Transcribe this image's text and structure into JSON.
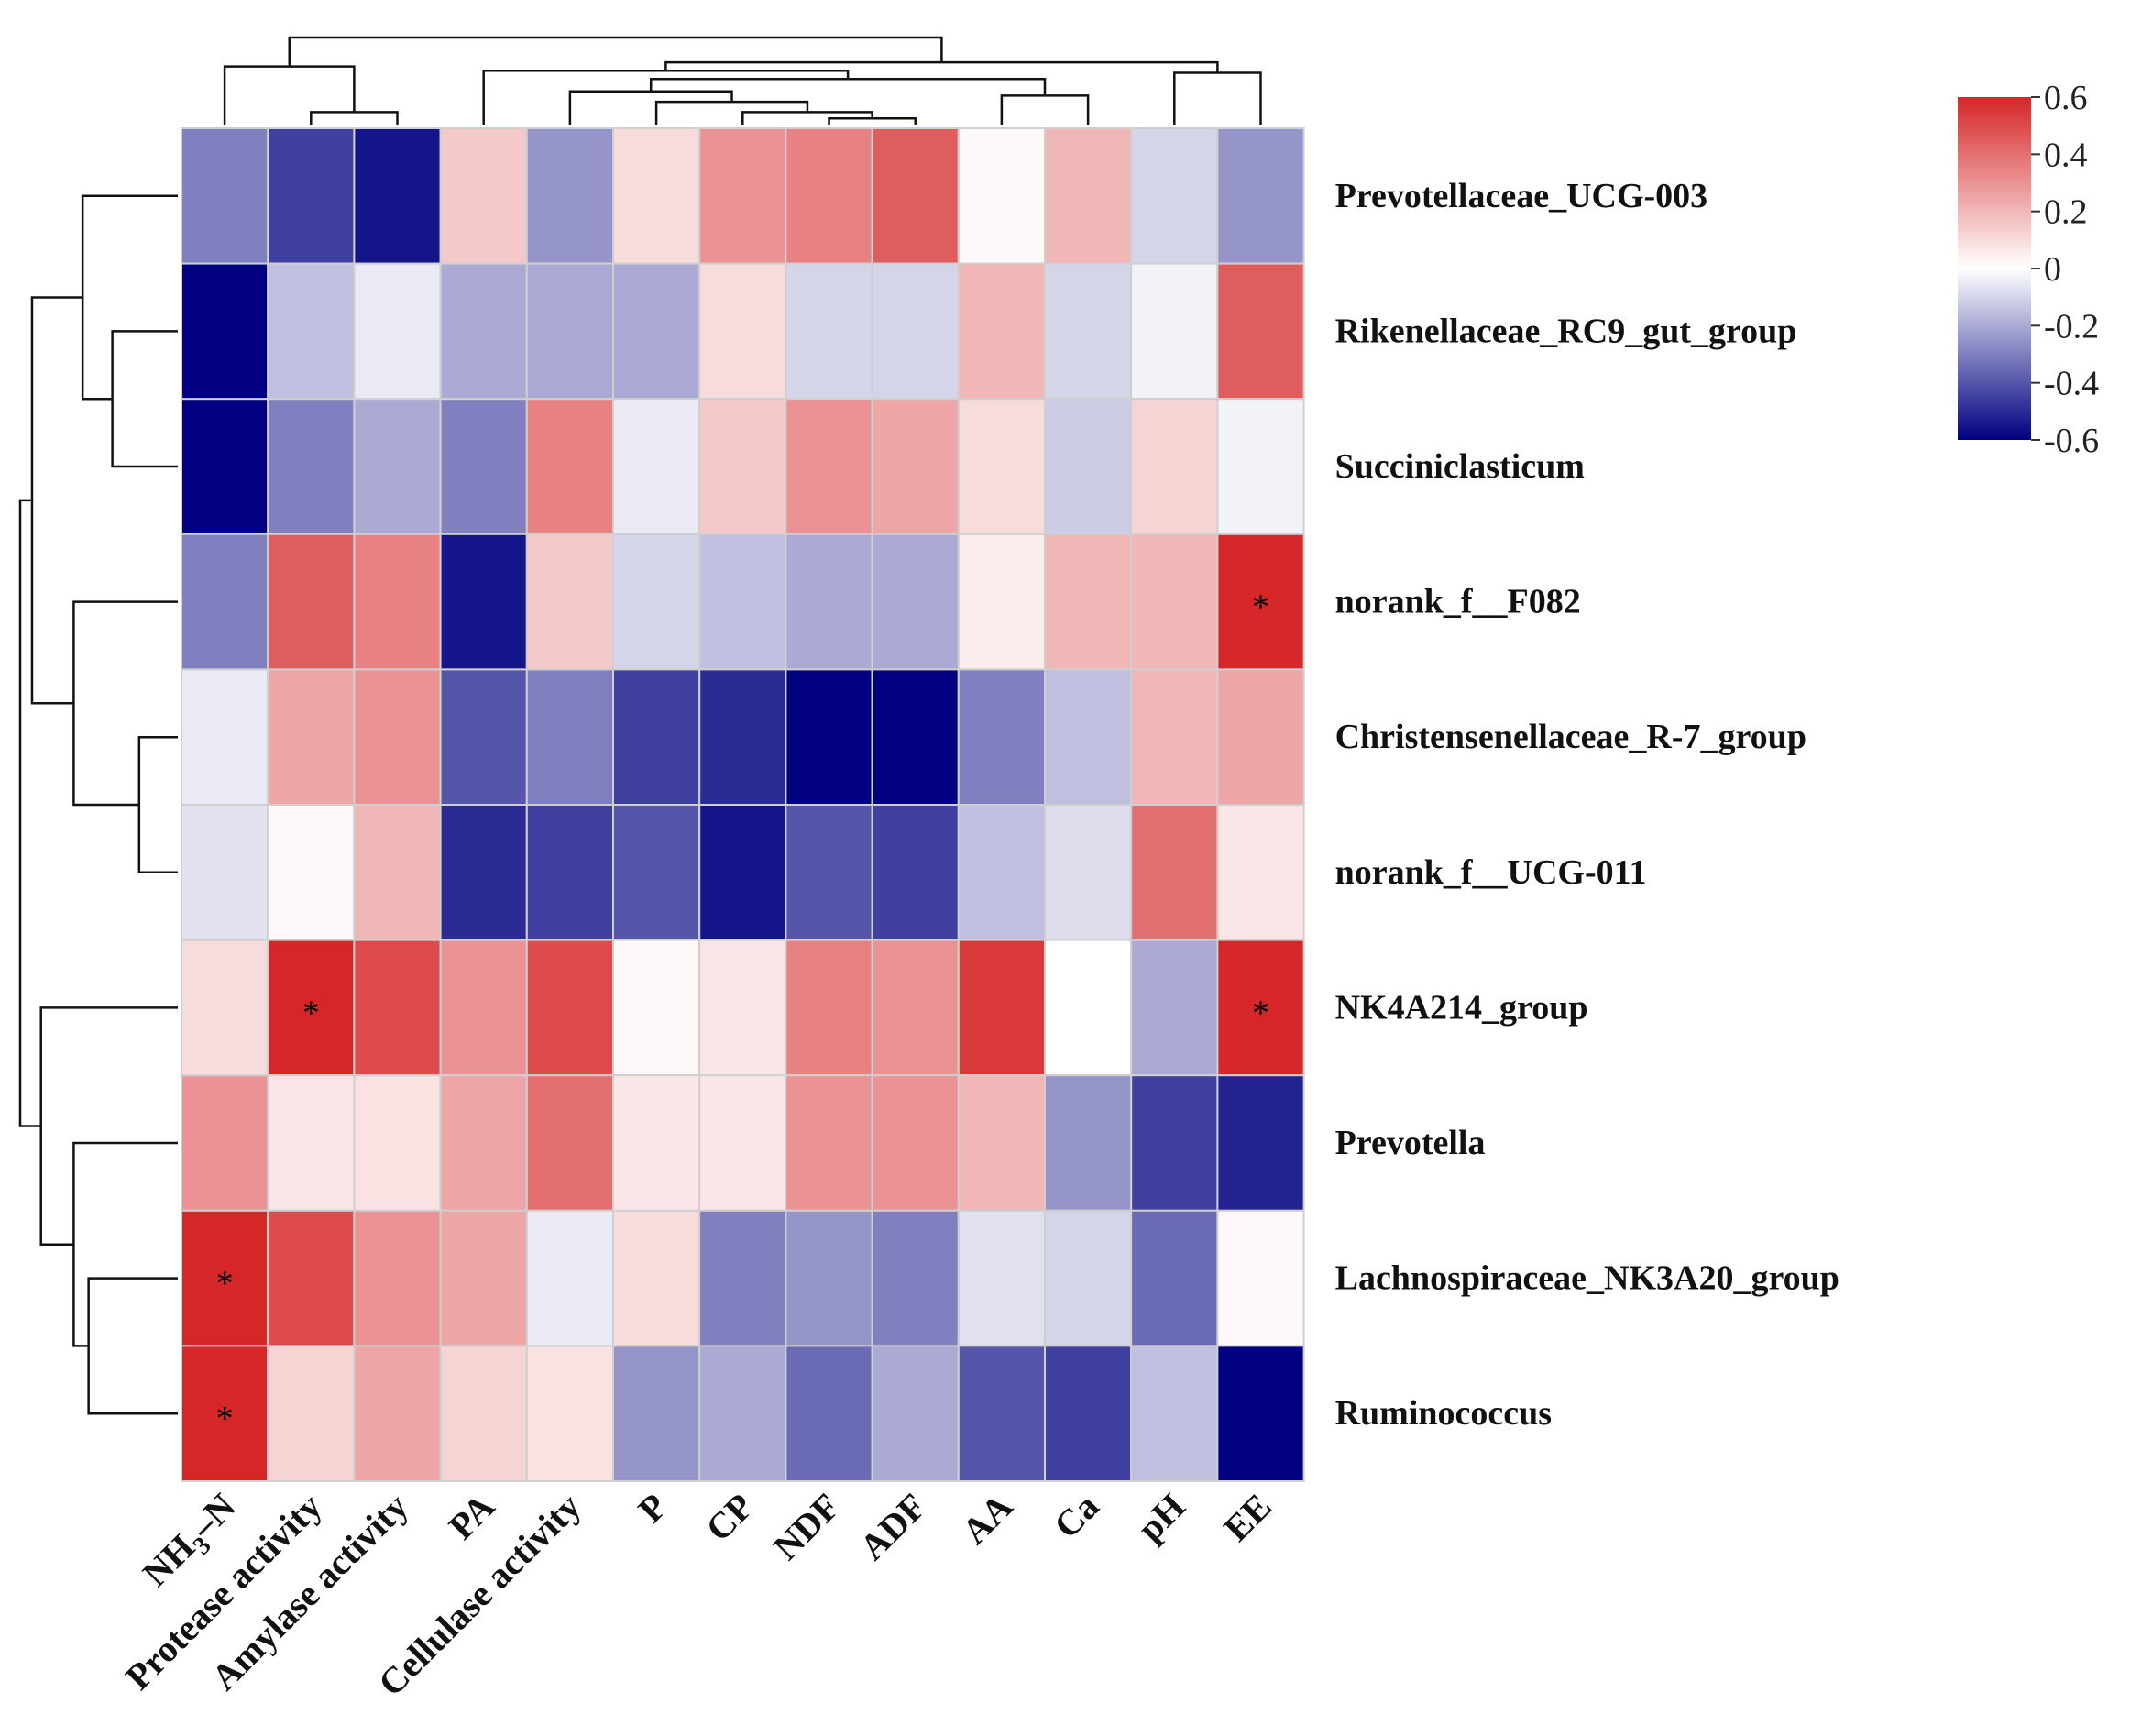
{
  "chart_data": {
    "type": "heatmap",
    "title": "",
    "columns": [
      "NH3–N",
      "Protease activity",
      "Amylase activity",
      "PA",
      "Cellulase activity",
      "P",
      "CP",
      "NDF",
      "ADF",
      "AA",
      "Ca",
      "pH",
      "EE"
    ],
    "column_labels": [
      {
        "main": "NH",
        "sub": "3",
        "rest": "–N"
      },
      {
        "main": "Protease activity"
      },
      {
        "main": "Amylase activity"
      },
      {
        "main": "PA"
      },
      {
        "main": "Cellulase activity"
      },
      {
        "main": "P"
      },
      {
        "main": "CP"
      },
      {
        "main": "NDF"
      },
      {
        "main": "ADF"
      },
      {
        "main": "AA"
      },
      {
        "main": "Ca"
      },
      {
        "main": "pH"
      },
      {
        "main": "EE"
      }
    ],
    "rows": [
      "Prevotellaceae_UCG-003",
      "Rikenellaceae_RC9_gut_group",
      "Succiniclasticum",
      "norank_f__F082",
      "Christensenellaceae_R-7_group",
      "norank_f__UCG-011",
      "NK4A214_group",
      "Prevotella",
      "Lachnospiraceae_NK3A20_group",
      "Ruminococcus"
    ],
    "values": [
      [
        -0.3,
        -0.45,
        -0.55,
        0.15,
        -0.25,
        0.1,
        0.3,
        0.35,
        0.45,
        0.02,
        0.2,
        -0.1,
        -0.25
      ],
      [
        -0.6,
        -0.15,
        -0.05,
        -0.2,
        -0.2,
        -0.2,
        0.1,
        -0.1,
        -0.1,
        0.2,
        -0.1,
        -0.03,
        0.45
      ],
      [
        -0.6,
        -0.3,
        -0.2,
        -0.3,
        0.35,
        -0.05,
        0.15,
        0.3,
        0.25,
        0.1,
        -0.12,
        0.12,
        -0.03
      ],
      [
        -0.3,
        0.45,
        0.35,
        -0.55,
        0.15,
        -0.1,
        -0.15,
        -0.2,
        -0.2,
        0.05,
        0.2,
        0.2,
        0.65
      ],
      [
        -0.05,
        0.25,
        0.3,
        -0.4,
        -0.3,
        -0.45,
        -0.5,
        -0.6,
        -0.6,
        -0.3,
        -0.15,
        0.2,
        0.25
      ],
      [
        -0.07,
        0.02,
        0.2,
        -0.5,
        -0.45,
        -0.4,
        -0.55,
        -0.4,
        -0.45,
        -0.15,
        -0.08,
        0.4,
        0.07
      ],
      [
        0.1,
        0.6,
        0.5,
        0.3,
        0.5,
        0.02,
        0.07,
        0.35,
        0.3,
        0.55,
        0.0,
        -0.2,
        0.65
      ],
      [
        0.3,
        0.07,
        0.08,
        0.25,
        0.4,
        0.07,
        0.07,
        0.3,
        0.3,
        0.2,
        -0.25,
        -0.45,
        -0.52
      ],
      [
        0.6,
        0.5,
        0.3,
        0.25,
        -0.05,
        0.1,
        -0.3,
        -0.25,
        -0.3,
        -0.07,
        -0.1,
        -0.35,
        0.02
      ],
      [
        0.65,
        0.12,
        0.25,
        0.12,
        0.08,
        -0.25,
        -0.2,
        -0.35,
        -0.2,
        -0.4,
        -0.45,
        -0.15,
        -0.6
      ]
    ],
    "significance": [
      [
        "",
        "",
        "",
        "",
        "",
        "",
        "",
        "",
        "",
        "",
        "",
        "",
        ""
      ],
      [
        "",
        "",
        "",
        "",
        "",
        "",
        "",
        "",
        "",
        "",
        "",
        "",
        ""
      ],
      [
        "",
        "",
        "",
        "",
        "",
        "",
        "",
        "",
        "",
        "",
        "",
        "",
        ""
      ],
      [
        "",
        "",
        "",
        "",
        "",
        "",
        "",
        "",
        "",
        "",
        "",
        "",
        "*"
      ],
      [
        "",
        "",
        "",
        "",
        "",
        "",
        "",
        "",
        "",
        "",
        "",
        "",
        ""
      ],
      [
        "",
        "",
        "",
        "",
        "",
        "",
        "",
        "",
        "",
        "",
        "",
        "",
        ""
      ],
      [
        "",
        "*",
        "",
        "",
        "",
        "",
        "",
        "",
        "",
        "",
        "",
        "",
        "*"
      ],
      [
        "",
        "",
        "",
        "",
        "",
        "",
        "",
        "",
        "",
        "",
        "",
        "",
        ""
      ],
      [
        "*",
        "",
        "",
        "",
        "",
        "",
        "",
        "",
        "",
        "",
        "",
        "",
        ""
      ],
      [
        "*",
        "",
        "",
        "",
        "",
        "",
        "",
        "",
        "",
        "",
        "",
        "",
        ""
      ]
    ],
    "color_scale": {
      "min": -0.6,
      "max": 0.6,
      "low_color": "#000080",
      "mid_color": "#ffffff",
      "high_color": "#d62728",
      "ticks": [
        0.6,
        0.4,
        0.2,
        0,
        -0.2,
        -0.4,
        -0.6
      ],
      "tick_labels": [
        "0.6",
        "0.4",
        "0.2",
        "0",
        "-0.2",
        "-0.4",
        "-0.6"
      ]
    },
    "legend": "top-right",
    "row_dendrogram": true,
    "column_dendrogram": true
  }
}
